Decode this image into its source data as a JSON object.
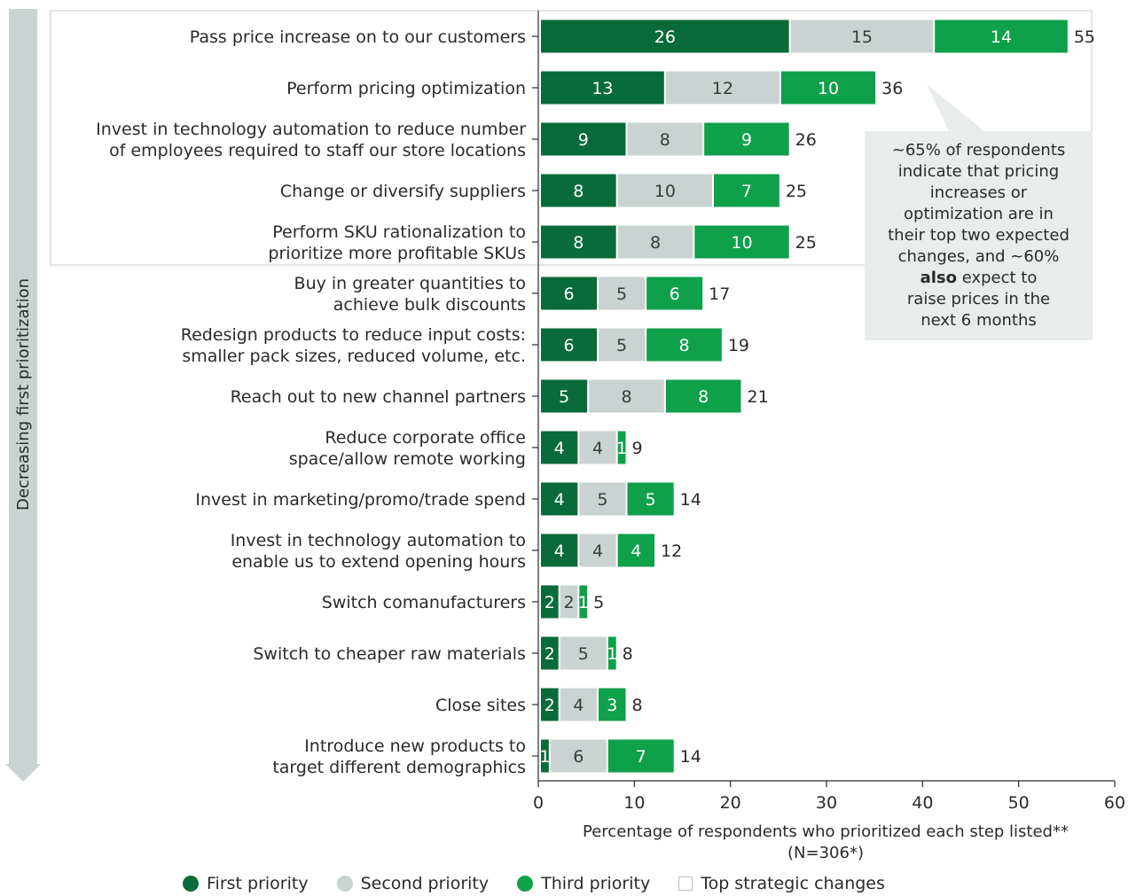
{
  "chart_data": {
    "type": "bar",
    "orientation": "horizontal",
    "stacked": true,
    "categories": [
      [
        "Pass price increase on to our customers"
      ],
      [
        "Perform pricing optimization"
      ],
      [
        "Invest in technology automation to reduce number",
        "of employees required to staff our store locations"
      ],
      [
        "Change or diversify suppliers"
      ],
      [
        "Perform SKU rationalization to",
        "prioritize more profitable SKUs"
      ],
      [
        "Buy in greater quantities to",
        "achieve bulk discounts"
      ],
      [
        "Redesign products to reduce input costs:",
        "smaller pack sizes, reduced volume, etc."
      ],
      [
        "Reach out to new channel partners"
      ],
      [
        "Reduce corporate office",
        "space/allow remote working"
      ],
      [
        "Invest in marketing/promo/trade spend"
      ],
      [
        "Invest in technology automation to",
        "enable us to extend opening hours"
      ],
      [
        "Switch comanufacturers"
      ],
      [
        "Switch to cheaper raw materials"
      ],
      [
        "Close sites"
      ],
      [
        "Introduce new products to",
        "target different demographics"
      ]
    ],
    "series": [
      {
        "name": "First priority",
        "color": "#0a6b3a",
        "label_color": "#ffffff",
        "values": [
          26,
          13,
          9,
          8,
          8,
          6,
          6,
          5,
          4,
          4,
          4,
          2,
          2,
          2,
          1
        ]
      },
      {
        "name": "Second priority",
        "color": "#cbd3d2",
        "label_color": "#3a3a3a",
        "values": [
          15,
          12,
          8,
          10,
          8,
          5,
          5,
          8,
          4,
          5,
          4,
          2,
          5,
          4,
          6
        ]
      },
      {
        "name": "Third priority",
        "color": "#0fa04a",
        "label_color": "#ffffff",
        "values": [
          14,
          10,
          9,
          7,
          10,
          6,
          8,
          8,
          1,
          5,
          4,
          1,
          1,
          3,
          7
        ]
      }
    ],
    "totals": [
      55,
      36,
      26,
      25,
      25,
      17,
      19,
      21,
      9,
      14,
      12,
      5,
      8,
      8,
      14
    ],
    "top_strategic_changes_count": 5,
    "xlim": [
      0,
      60
    ],
    "xticks": [
      0,
      10,
      20,
      30,
      40,
      50,
      60
    ],
    "xlabel": "Percentage of respondents who prioritized each step listed**",
    "xlabel_sub": "(N=306*)",
    "side_label": "Decreasing first prioritization",
    "legend": {
      "placement": "bottom",
      "items": [
        {
          "label": "First priority",
          "color": "#0a6b3a",
          "shape": "circle"
        },
        {
          "label": "Second priority",
          "color": "#cbd3d2",
          "shape": "circle"
        },
        {
          "label": "Third priority",
          "color": "#0fa04a",
          "shape": "circle"
        },
        {
          "label": "Top strategic changes",
          "color": "#ffffff",
          "shape": "square"
        }
      ]
    }
  },
  "callout": {
    "lines": [
      [
        {
          "t": "~65% of respondents"
        }
      ],
      [
        {
          "t": "indicate that pricing"
        }
      ],
      [
        {
          "t": "increases or"
        }
      ],
      [
        {
          "t": "optimization are in"
        }
      ],
      [
        {
          "t": "their top two expected"
        }
      ],
      [
        {
          "t": "changes, and ~60%"
        }
      ],
      [
        {
          "t": "also",
          "bold": true
        },
        {
          "t": " expect to"
        }
      ],
      [
        {
          "t": "raise prices in the"
        }
      ],
      [
        {
          "t": "next 6 months"
        }
      ]
    ]
  }
}
